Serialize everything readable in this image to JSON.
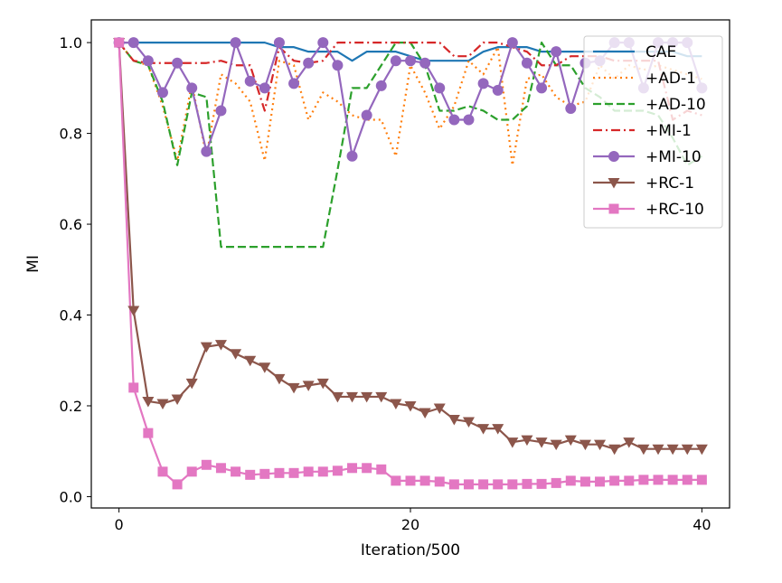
{
  "chart_data": {
    "type": "line",
    "title": "",
    "xlabel": "Iteration/500",
    "ylabel": "MI",
    "xlim": [
      -1.9,
      41.9
    ],
    "ylim": [
      -0.025,
      1.05
    ],
    "xticks": [
      0,
      20,
      40
    ],
    "yticks": [
      0.0,
      0.2,
      0.4,
      0.6,
      0.8,
      1.0
    ],
    "xtick_labels": [
      "0",
      "20",
      "40"
    ],
    "ytick_labels": [
      "0.0",
      "0.2",
      "0.4",
      "0.6",
      "0.8",
      "1.0"
    ],
    "grid": false,
    "legend_position": "top-right",
    "x": [
      0,
      1,
      2,
      3,
      4,
      5,
      6,
      7,
      8,
      9,
      10,
      11,
      12,
      13,
      14,
      15,
      16,
      17,
      18,
      19,
      20,
      21,
      22,
      23,
      24,
      25,
      26,
      27,
      28,
      29,
      30,
      31,
      32,
      33,
      34,
      35,
      36,
      37,
      38,
      39,
      40
    ],
    "series": [
      {
        "name": "CAE",
        "color": "#1f77b4",
        "dash": "solid",
        "marker": "none",
        "values": [
          1.0,
          1.0,
          1.0,
          1.0,
          1.0,
          1.0,
          1.0,
          1.0,
          1.0,
          1.0,
          1.0,
          0.99,
          0.99,
          0.98,
          0.98,
          0.98,
          0.96,
          0.98,
          0.98,
          0.98,
          0.97,
          0.96,
          0.96,
          0.96,
          0.96,
          0.98,
          0.99,
          0.99,
          0.99,
          0.98,
          0.98,
          0.98,
          0.98,
          0.98,
          0.98,
          0.98,
          0.98,
          0.98,
          0.98,
          0.97,
          0.97
        ]
      },
      {
        "name": "+AD-1",
        "color": "#ff7f0e",
        "dash": "dotted",
        "marker": "none",
        "values": [
          1.0,
          0.96,
          0.95,
          0.86,
          0.74,
          0.91,
          0.75,
          0.93,
          0.91,
          0.87,
          0.74,
          0.96,
          0.95,
          0.83,
          0.89,
          0.87,
          0.84,
          0.83,
          0.83,
          0.75,
          0.95,
          0.89,
          0.81,
          0.86,
          0.96,
          0.93,
          0.99,
          0.73,
          0.92,
          0.93,
          0.88,
          0.86,
          0.87,
          0.95,
          0.92,
          0.95,
          0.94,
          0.95,
          0.94,
          0.93,
          0.92
        ]
      },
      {
        "name": "+AD-10",
        "color": "#2ca02c",
        "dash": "dashed",
        "marker": "none",
        "values": [
          1.0,
          0.96,
          0.95,
          0.87,
          0.73,
          0.89,
          0.88,
          0.55,
          0.55,
          0.55,
          0.55,
          0.55,
          0.55,
          0.55,
          0.55,
          0.72,
          0.9,
          0.9,
          0.95,
          1.0,
          1.0,
          0.95,
          0.85,
          0.85,
          0.86,
          0.85,
          0.83,
          0.83,
          0.86,
          1.0,
          0.95,
          0.95,
          0.9,
          0.88,
          0.85,
          0.85,
          0.85,
          0.84,
          0.79,
          0.73,
          0.75
        ]
      },
      {
        "name": "+MI-1",
        "color": "#d62728",
        "dash": "dashdot",
        "marker": "none",
        "values": [
          1.0,
          0.96,
          0.955,
          0.955,
          0.955,
          0.955,
          0.955,
          0.96,
          0.95,
          0.95,
          0.85,
          0.99,
          0.96,
          0.955,
          0.96,
          1.0,
          1.0,
          1.0,
          1.0,
          1.0,
          1.0,
          1.0,
          1.0,
          0.97,
          0.97,
          1.0,
          1.0,
          0.99,
          0.98,
          0.95,
          0.95,
          0.97,
          0.97,
          0.97,
          0.96,
          0.96,
          0.96,
          0.96,
          0.83,
          0.85,
          0.84
        ]
      },
      {
        "name": "+MI-10",
        "color": "#9467bd",
        "dash": "solid",
        "marker": "circle",
        "values": [
          1.0,
          1.0,
          0.96,
          0.89,
          0.955,
          0.9,
          0.76,
          0.85,
          1.0,
          0.915,
          0.9,
          1.0,
          0.91,
          0.955,
          1.0,
          0.95,
          0.75,
          0.84,
          0.905,
          0.96,
          0.96,
          0.955,
          0.9,
          0.83,
          0.83,
          0.91,
          0.895,
          1.0,
          0.955,
          0.9,
          0.98,
          0.855,
          0.955,
          0.96,
          1.0,
          1.0,
          0.9,
          1.0,
          1.0,
          1.0,
          0.9
        ]
      },
      {
        "name": "+RC-1",
        "color": "#8c564b",
        "dash": "solid",
        "marker": "triangle_down",
        "values": [
          1.0,
          0.41,
          0.21,
          0.205,
          0.215,
          0.25,
          0.33,
          0.335,
          0.315,
          0.3,
          0.285,
          0.26,
          0.24,
          0.245,
          0.25,
          0.22,
          0.22,
          0.22,
          0.22,
          0.205,
          0.2,
          0.185,
          0.195,
          0.17,
          0.165,
          0.15,
          0.15,
          0.12,
          0.125,
          0.12,
          0.115,
          0.125,
          0.115,
          0.115,
          0.105,
          0.12,
          0.105,
          0.105,
          0.105,
          0.105,
          0.105
        ]
      },
      {
        "name": "+RC-10",
        "color": "#e377c2",
        "dash": "solid",
        "marker": "square",
        "values": [
          1.0,
          0.24,
          0.14,
          0.055,
          0.027,
          0.055,
          0.07,
          0.063,
          0.055,
          0.048,
          0.05,
          0.052,
          0.052,
          0.055,
          0.055,
          0.057,
          0.063,
          0.063,
          0.06,
          0.035,
          0.035,
          0.035,
          0.033,
          0.027,
          0.027,
          0.027,
          0.027,
          0.027,
          0.028,
          0.028,
          0.03,
          0.035,
          0.033,
          0.033,
          0.035,
          0.035,
          0.037,
          0.037,
          0.037,
          0.037,
          0.037
        ]
      }
    ]
  }
}
